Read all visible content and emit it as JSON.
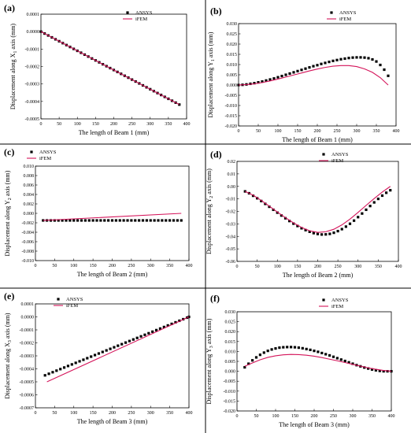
{
  "figure": {
    "colors": {
      "ansys": "#000000",
      "ifem": "#d4145a",
      "separator": "#000000"
    }
  },
  "chart_data": [
    {
      "id": "a",
      "panel_label": "(a)",
      "type": "scatter+line",
      "xlabel": "The length of Beam 1 (mm)",
      "ylabel": {
        "text": "Displacement along X",
        "sub": "1",
        "suffix": " axis (mm)"
      },
      "xlim": [
        0,
        400
      ],
      "ylim": [
        -0.0005,
        0.0001
      ],
      "xticks": [
        0,
        50,
        100,
        150,
        200,
        250,
        300,
        350,
        400
      ],
      "yticks": [
        0.0001,
        0.0,
        -0.0001,
        -0.0002,
        -0.0003,
        -0.0004,
        -0.0005
      ],
      "ytick_labels": [
        "0.0001",
        "0.0000",
        "-0.0001",
        "-0.0002",
        "-0.0003",
        "-0.0004",
        "-0.0005"
      ],
      "xtick_labels": [
        "0",
        "50",
        "100",
        "150",
        "200",
        "250",
        "300",
        "350",
        "400"
      ],
      "legend": [
        "ANSYS",
        "iFEM"
      ],
      "legend_position": "top-right",
      "series": [
        {
          "name": "ANSYS",
          "style": "markers",
          "x": [
            0,
            10,
            20,
            30,
            40,
            50,
            60,
            70,
            80,
            90,
            100,
            110,
            120,
            130,
            140,
            150,
            160,
            170,
            180,
            190,
            200,
            210,
            220,
            230,
            240,
            250,
            260,
            270,
            280,
            290,
            300,
            310,
            320,
            330,
            340,
            350,
            360,
            370,
            380
          ],
          "y": [
            0,
            -1.1e-05,
            -2.2e-05,
            -3.3e-05,
            -4.4e-05,
            -5.5e-05,
            -6.6e-05,
            -7.7e-05,
            -8.8e-05,
            -9.9e-05,
            -0.00011,
            -0.000121,
            -0.000132,
            -0.000143,
            -0.000154,
            -0.000165,
            -0.000176,
            -0.000187,
            -0.000198,
            -0.000209,
            -0.00022,
            -0.000231,
            -0.000242,
            -0.000253,
            -0.000264,
            -0.000275,
            -0.000286,
            -0.000297,
            -0.000308,
            -0.000319,
            -0.00033,
            -0.000341,
            -0.000352,
            -0.000363,
            -0.000374,
            -0.000385,
            -0.000396,
            -0.000407,
            -0.000418
          ]
        },
        {
          "name": "iFEM",
          "style": "line",
          "x": [
            0,
            380
          ],
          "y": [
            0,
            -0.000418
          ]
        }
      ]
    },
    {
      "id": "b",
      "panel_label": "(b)",
      "type": "scatter+line",
      "xlabel": "The length of Beam 1 (mm)",
      "ylabel": {
        "text": "Displacement along Y",
        "sub": "1",
        "suffix": " axis (mm)"
      },
      "xlim": [
        0,
        400
      ],
      "ylim": [
        -0.02,
        0.03
      ],
      "xticks": [
        0,
        50,
        100,
        150,
        200,
        250,
        300,
        350,
        400
      ],
      "yticks": [
        0.03,
        0.025,
        0.02,
        0.015,
        0.01,
        0.005,
        0,
        -0.005,
        -0.01,
        -0.015,
        -0.02
      ],
      "ytick_labels": [
        "0.030",
        "0.025",
        "0.020",
        "0.015",
        "0.010",
        "0.005",
        "0.000",
        "-0.005",
        "-0.010",
        "-0.015",
        "-0.020"
      ],
      "xtick_labels": [
        "0",
        "50",
        "100",
        "150",
        "200",
        "250",
        "300",
        "350",
        "400"
      ],
      "legend": [
        "ANSYS",
        "iFEM"
      ],
      "legend_position": "top-right",
      "series": [
        {
          "name": "ANSYS",
          "style": "markers",
          "x": [
            0,
            10,
            20,
            30,
            40,
            50,
            60,
            70,
            80,
            90,
            100,
            110,
            120,
            130,
            140,
            150,
            160,
            170,
            180,
            190,
            200,
            210,
            220,
            230,
            240,
            250,
            260,
            270,
            280,
            290,
            300,
            310,
            320,
            330,
            340,
            350,
            360,
            370,
            380
          ],
          "y": [
            0,
            0.0001,
            0.0003,
            0.0006,
            0.0009,
            0.0013,
            0.0017,
            0.0022,
            0.0027,
            0.0032,
            0.0038,
            0.0044,
            0.005,
            0.0056,
            0.0062,
            0.0068,
            0.0074,
            0.008,
            0.0086,
            0.0092,
            0.0097,
            0.0103,
            0.0108,
            0.0113,
            0.0118,
            0.0122,
            0.0126,
            0.0129,
            0.0132,
            0.0134,
            0.0135,
            0.0135,
            0.0134,
            0.0131,
            0.0125,
            0.0115,
            0.0098,
            0.0075,
            0.0045
          ]
        },
        {
          "name": "iFEM",
          "style": "line",
          "x": [
            0,
            20,
            40,
            60,
            80,
            100,
            120,
            140,
            160,
            180,
            200,
            220,
            240,
            260,
            280,
            300,
            320,
            340,
            360,
            380
          ],
          "y": [
            0,
            0.0002,
            0.0006,
            0.0012,
            0.002,
            0.0029,
            0.0039,
            0.0049,
            0.0059,
            0.0069,
            0.0078,
            0.0086,
            0.0092,
            0.0095,
            0.0095,
            0.009,
            0.0079,
            0.0062,
            0.0036,
            0.0
          ]
        }
      ]
    },
    {
      "id": "c",
      "panel_label": "(c)",
      "type": "scatter+line",
      "xlabel": "The length of Beam 2 (mm)",
      "ylabel": {
        "text": "Displacement along Y",
        "sub": "2",
        "suffix": " axis (mm)"
      },
      "xlim": [
        0,
        400
      ],
      "ylim": [
        -0.01,
        0.01
      ],
      "xticks": [
        0,
        50,
        100,
        150,
        200,
        250,
        300,
        350,
        400
      ],
      "yticks": [
        0.01,
        0.008,
        0.006,
        0.004,
        0.002,
        0,
        -0.002,
        -0.004,
        -0.006,
        -0.008,
        -0.01
      ],
      "ytick_labels": [
        "0.010",
        "0.008",
        "0.006",
        "0.004",
        "0.002",
        "0.000",
        "-0.002",
        "-0.004",
        "-0.006",
        "-0.008",
        "-0.010"
      ],
      "xtick_labels": [
        "0",
        "50",
        "100",
        "150",
        "200",
        "250",
        "300",
        "350",
        "400"
      ],
      "legend": [
        "ANSYS",
        "iFEM"
      ],
      "legend_position": "top-left",
      "series": [
        {
          "name": "ANSYS",
          "style": "markers",
          "x": [
            20,
            30,
            40,
            50,
            60,
            70,
            80,
            90,
            100,
            110,
            120,
            130,
            140,
            150,
            160,
            170,
            180,
            190,
            200,
            210,
            220,
            230,
            240,
            250,
            260,
            270,
            280,
            290,
            300,
            310,
            320,
            330,
            340,
            350,
            360,
            370,
            380
          ],
          "y": [
            -0.0015,
            -0.0015,
            -0.0015,
            -0.0015,
            -0.0015,
            -0.0015,
            -0.0015,
            -0.0015,
            -0.0015,
            -0.0015,
            -0.0015,
            -0.0015,
            -0.0015,
            -0.0015,
            -0.0015,
            -0.0015,
            -0.0015,
            -0.0015,
            -0.0015,
            -0.0015,
            -0.0015,
            -0.0015,
            -0.0015,
            -0.0015,
            -0.0015,
            -0.0015,
            -0.0015,
            -0.0015,
            -0.0015,
            -0.0015,
            -0.0015,
            -0.0015,
            -0.0015,
            -0.0015,
            -0.0015,
            -0.0015,
            -0.0015
          ]
        },
        {
          "name": "iFEM",
          "style": "line",
          "x": [
            20,
            380
          ],
          "y": [
            -0.0015,
            0.0
          ]
        }
      ]
    },
    {
      "id": "d",
      "panel_label": "(d)",
      "type": "scatter+line",
      "xlabel": "The length of Beam 2 (mm)",
      "ylabel": {
        "text": "Displacement along Y",
        "sub": "2",
        "suffix": " axis (mm)"
      },
      "xlim": [
        0,
        400
      ],
      "ylim": [
        -0.06,
        0.02
      ],
      "xticks": [
        0,
        50,
        100,
        150,
        200,
        250,
        300,
        350,
        400
      ],
      "yticks": [
        0.02,
        0.01,
        0,
        -0.01,
        -0.02,
        -0.03,
        -0.04,
        -0.05,
        -0.06
      ],
      "ytick_labels": [
        "0.02",
        "0.01",
        "0.00",
        "-0.01",
        "-0.02",
        "-0.03",
        "-0.04",
        "-0.05",
        "-0.06"
      ],
      "xtick_labels": [
        "0",
        "50",
        "100",
        "150",
        "200",
        "250",
        "300",
        "350",
        "400"
      ],
      "legend": [
        "ANSYS",
        "iFEM"
      ],
      "legend_position": "top-right",
      "series": [
        {
          "name": "ANSYS",
          "style": "markers",
          "x": [
            20,
            30,
            40,
            50,
            60,
            70,
            80,
            90,
            100,
            110,
            120,
            130,
            140,
            150,
            160,
            170,
            180,
            190,
            200,
            210,
            220,
            230,
            240,
            250,
            260,
            270,
            280,
            290,
            300,
            310,
            320,
            330,
            340,
            350,
            360,
            370,
            380
          ],
          "y": [
            -0.004,
            -0.0055,
            -0.0075,
            -0.0095,
            -0.0117,
            -0.014,
            -0.0163,
            -0.0187,
            -0.021,
            -0.0233,
            -0.0255,
            -0.0277,
            -0.0298,
            -0.0317,
            -0.0335,
            -0.035,
            -0.0363,
            -0.0374,
            -0.0381,
            -0.0385,
            -0.0384,
            -0.038,
            -0.0371,
            -0.0358,
            -0.0342,
            -0.0322,
            -0.0299,
            -0.0274,
            -0.0246,
            -0.0217,
            -0.0187,
            -0.0157,
            -0.0128,
            -0.01,
            -0.0074,
            -0.0051,
            -0.0031
          ]
        },
        {
          "name": "iFEM",
          "style": "line",
          "x": [
            20,
            40,
            60,
            80,
            100,
            120,
            140,
            160,
            180,
            200,
            220,
            240,
            260,
            280,
            300,
            320,
            340,
            360,
            380
          ],
          "y": [
            -0.004,
            -0.007,
            -0.0112,
            -0.0158,
            -0.0205,
            -0.025,
            -0.0292,
            -0.0328,
            -0.0355,
            -0.0368,
            -0.0363,
            -0.0343,
            -0.0308,
            -0.0262,
            -0.0208,
            -0.0152,
            -0.0097,
            -0.0045,
            0.0
          ]
        }
      ]
    },
    {
      "id": "e",
      "panel_label": "(e)",
      "type": "scatter+line",
      "xlabel": "The length of Beam 3 (mm)",
      "ylabel": {
        "text": "Displacement along X",
        "sub": "3",
        "suffix": " axis (mm)"
      },
      "xlim": [
        0,
        400
      ],
      "ylim": [
        -0.0007,
        0.0001
      ],
      "xticks": [
        0,
        50,
        100,
        150,
        200,
        250,
        300,
        350,
        400
      ],
      "yticks": [
        0.0001,
        0,
        -0.0001,
        -0.0002,
        -0.0003,
        -0.0004,
        -0.0005,
        -0.0006,
        -0.0007
      ],
      "ytick_labels": [
        "0.0001",
        "0.0000",
        "-0.0001",
        "-0.0002",
        "-0.0003",
        "-0.0004",
        "-0.0005",
        "-0.0006",
        "-0.0007"
      ],
      "xtick_labels": [
        "0",
        "50",
        "100",
        "150",
        "200",
        "250",
        "300",
        "350",
        "400"
      ],
      "legend": [
        "ANSYS",
        "iFEM"
      ],
      "legend_position": "top-left",
      "series": [
        {
          "name": "ANSYS",
          "style": "markers",
          "x": [
            25,
            35,
            45,
            55,
            65,
            75,
            85,
            95,
            105,
            115,
            125,
            135,
            145,
            155,
            165,
            175,
            185,
            195,
            205,
            215,
            225,
            235,
            245,
            255,
            265,
            275,
            285,
            295,
            305,
            315,
            325,
            335,
            345,
            355,
            365,
            375,
            385,
            395,
            400
          ],
          "y": [
            -0.00045,
            -0.000438,
            -0.000426,
            -0.000414,
            -0.000402,
            -0.00039,
            -0.000378,
            -0.000366,
            -0.000354,
            -0.000342,
            -0.00033,
            -0.000318,
            -0.000306,
            -0.000294,
            -0.000282,
            -0.00027,
            -0.000258,
            -0.000246,
            -0.000234,
            -0.000222,
            -0.00021,
            -0.000198,
            -0.000186,
            -0.000174,
            -0.000162,
            -0.00015,
            -0.000138,
            -0.000126,
            -0.000114,
            -0.000102,
            -9e-05,
            -7.8e-05,
            -6.6e-05,
            -5.4e-05,
            -4.2e-05,
            -3e-05,
            -1.8e-05,
            -6e-06,
            0.0
          ]
        },
        {
          "name": "iFEM",
          "style": "line",
          "x": [
            30,
            400
          ],
          "y": [
            -0.0005,
            0.0
          ]
        }
      ]
    },
    {
      "id": "f",
      "panel_label": "(f)",
      "type": "scatter+line",
      "xlabel": "The length of Beam 3 (mm)",
      "ylabel": {
        "text": "Displacement along Y",
        "sub": "3",
        "suffix": " axis (mm)"
      },
      "xlim": [
        0,
        400
      ],
      "ylim": [
        -0.02,
        0.03
      ],
      "xticks": [
        0,
        50,
        100,
        150,
        200,
        250,
        300,
        350,
        400
      ],
      "yticks": [
        0.03,
        0.025,
        0.02,
        0.015,
        0.01,
        0.005,
        0,
        -0.005,
        -0.01,
        -0.015,
        -0.02
      ],
      "ytick_labels": [
        "0.030",
        "0.025",
        "0.020",
        "0.015",
        "0.010",
        "0.005",
        "0.000",
        "-0.005",
        "-0.010",
        "-0.015",
        "-0.020"
      ],
      "xtick_labels": [
        "0",
        "50",
        "100",
        "150",
        "200",
        "250",
        "300",
        "350",
        "400"
      ],
      "legend": [
        "ANSYS",
        "iFEM"
      ],
      "legend_position": "top-right",
      "series": [
        {
          "name": "ANSYS",
          "style": "markers",
          "x": [
            20,
            30,
            40,
            50,
            60,
            70,
            80,
            90,
            100,
            110,
            120,
            130,
            140,
            150,
            160,
            170,
            180,
            190,
            200,
            210,
            220,
            230,
            240,
            250,
            260,
            270,
            280,
            290,
            300,
            310,
            320,
            330,
            340,
            350,
            360,
            370,
            380,
            390,
            400
          ],
          "y": [
            0.002,
            0.0038,
            0.0055,
            0.007,
            0.0083,
            0.0094,
            0.0103,
            0.011,
            0.0115,
            0.0119,
            0.0121,
            0.0122,
            0.0122,
            0.0121,
            0.0119,
            0.0116,
            0.0112,
            0.0108,
            0.0103,
            0.0098,
            0.0092,
            0.0086,
            0.008,
            0.0073,
            0.0066,
            0.0059,
            0.0052,
            0.0045,
            0.0038,
            0.0031,
            0.0025,
            0.0019,
            0.0014,
            0.0009,
            0.0005,
            0.0002,
            0.0,
            0.0,
            0.0
          ]
        },
        {
          "name": "iFEM",
          "style": "line",
          "x": [
            20,
            40,
            60,
            80,
            100,
            120,
            140,
            160,
            180,
            200,
            220,
            240,
            260,
            280,
            300,
            320,
            340,
            360,
            380,
            400
          ],
          "y": [
            0.0025,
            0.0042,
            0.0058,
            0.007,
            0.0078,
            0.0083,
            0.0085,
            0.0084,
            0.0081,
            0.0076,
            0.0069,
            0.0061,
            0.0053,
            0.0044,
            0.0035,
            0.0026,
            0.0017,
            0.001,
            0.0004,
            0.0
          ]
        }
      ]
    }
  ]
}
